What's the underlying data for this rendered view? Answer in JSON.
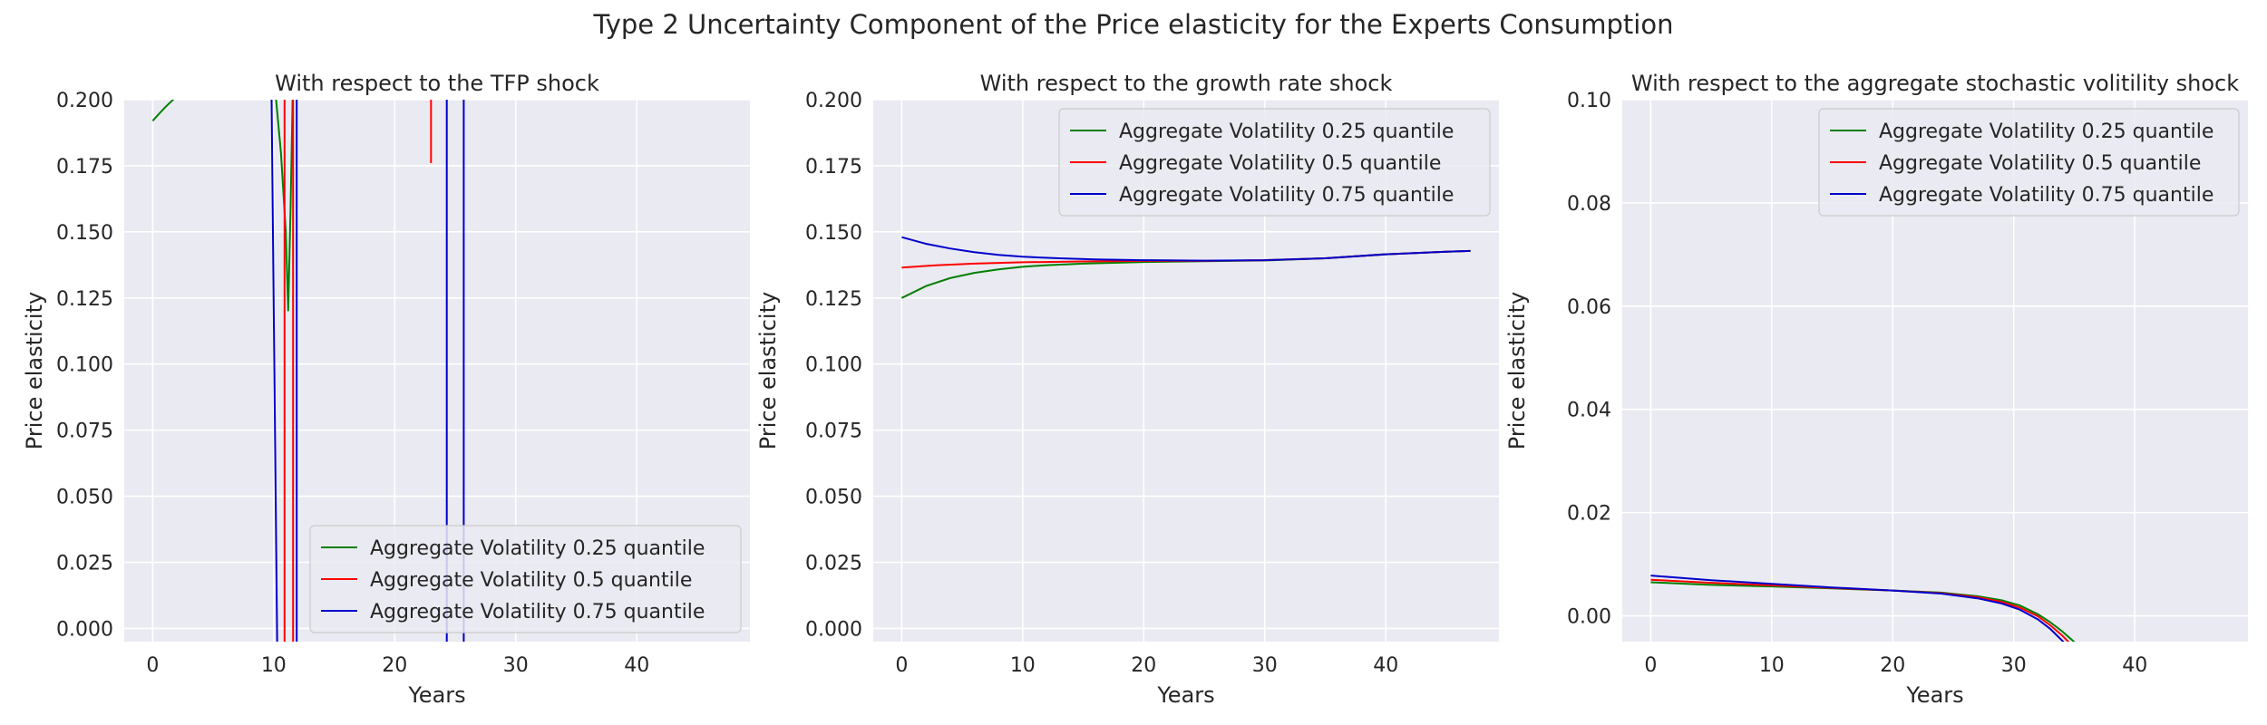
{
  "figure": {
    "title": "Type 2 Uncertainty Component of the Price elasticity for the Experts Consumption"
  },
  "chart_data": [
    {
      "type": "line",
      "title": "With respect to the TFP shock",
      "xlabel": "Years",
      "ylabel": "Price elasticity",
      "xlim": [
        -2.35,
        49.35
      ],
      "ylim": [
        -0.005,
        0.2
      ],
      "xticks": [
        0,
        10,
        20,
        30,
        40
      ],
      "yticks": [
        0.0,
        0.025,
        0.05,
        0.075,
        0.1,
        0.125,
        0.15,
        0.175,
        0.2
      ],
      "ytick_labels": [
        "0.000",
        "0.025",
        "0.050",
        "0.075",
        "0.100",
        "0.125",
        "0.150",
        "0.175",
        "0.200"
      ],
      "grid": true,
      "legend_position": "lower-right",
      "series": [
        {
          "name": "Aggregate Volatility 0.25 quantile",
          "color": "#008000",
          "segments": [
            [
              [
                0,
                0.192
              ],
              [
                0.5,
                0.1945
              ],
              [
                1,
                0.197
              ],
              [
                1.5,
                0.1992
              ],
              [
                1.8,
                0.2005
              ]
            ],
            [
              [
                10.0,
                0.21
              ],
              [
                10.6,
                0.18
              ],
              [
                11.0,
                0.15
              ],
              [
                11.2,
                0.12
              ],
              [
                11.4,
                0.16
              ],
              [
                11.6,
                0.21
              ]
            ]
          ]
        },
        {
          "name": "Aggregate Volatility 0.5 quantile",
          "color": "#ff0000",
          "segments": [
            [
              [
                10.9,
                0.21
              ],
              [
                10.9,
                -0.01
              ]
            ],
            [
              [
                11.6,
                -0.01
              ],
              [
                11.6,
                0.21
              ]
            ],
            [
              [
                23.0,
                0.176
              ],
              [
                23.0,
                0.21
              ]
            ]
          ]
        },
        {
          "name": "Aggregate Volatility 0.75 quantile",
          "color": "#0000cc",
          "segments": [
            [
              [
                9.8,
                0.21
              ],
              [
                10.3,
                -0.01
              ]
            ],
            [
              [
                11.9,
                -0.01
              ],
              [
                11.9,
                0.21
              ]
            ],
            [
              [
                24.3,
                -0.01
              ],
              [
                24.3,
                0.21
              ]
            ],
            [
              [
                25.7,
                -0.01
              ],
              [
                25.7,
                0.21
              ]
            ]
          ]
        }
      ]
    },
    {
      "type": "line",
      "title": "With respect to the growth rate shock",
      "xlabel": "Years",
      "ylabel": "Price elasticity",
      "xlim": [
        -2.35,
        49.35
      ],
      "ylim": [
        -0.005,
        0.2
      ],
      "xticks": [
        0,
        10,
        20,
        30,
        40
      ],
      "yticks": [
        0.0,
        0.025,
        0.05,
        0.075,
        0.1,
        0.125,
        0.15,
        0.175,
        0.2
      ],
      "ytick_labels": [
        "0.000",
        "0.025",
        "0.050",
        "0.075",
        "0.100",
        "0.125",
        "0.150",
        "0.175",
        "0.200"
      ],
      "grid": true,
      "legend_position": "upper-right",
      "series": [
        {
          "name": "Aggregate Volatility 0.25 quantile",
          "color": "#008000",
          "segments": [
            [
              [
                0,
                0.125
              ],
              [
                2,
                0.1295
              ],
              [
                4,
                0.1325
              ],
              [
                6,
                0.1345
              ],
              [
                8,
                0.1358
              ],
              [
                10,
                0.1368
              ],
              [
                12,
                0.1374
              ],
              [
                15,
                0.138
              ],
              [
                20,
                0.1386
              ],
              [
                25,
                0.1389
              ],
              [
                30,
                0.1392
              ],
              [
                35,
                0.14
              ],
              [
                40,
                0.1415
              ],
              [
                45,
                0.1425
              ],
              [
                47,
                0.1428
              ]
            ]
          ]
        },
        {
          "name": "Aggregate Volatility 0.5 quantile",
          "color": "#ff0000",
          "segments": [
            [
              [
                0,
                0.1365
              ],
              [
                3,
                0.1374
              ],
              [
                6,
                0.138
              ],
              [
                10,
                0.1385
              ],
              [
                15,
                0.1388
              ],
              [
                20,
                0.139
              ],
              [
                25,
                0.139
              ],
              [
                30,
                0.1393
              ],
              [
                35,
                0.14
              ],
              [
                40,
                0.1415
              ],
              [
                45,
                0.1425
              ],
              [
                47,
                0.1428
              ]
            ]
          ]
        },
        {
          "name": "Aggregate Volatility 0.75 quantile",
          "color": "#0000cc",
          "segments": [
            [
              [
                0,
                0.148
              ],
              [
                2,
                0.1455
              ],
              [
                4,
                0.1437
              ],
              [
                6,
                0.1423
              ],
              [
                8,
                0.1413
              ],
              [
                10,
                0.1406
              ],
              [
                13,
                0.14
              ],
              [
                16,
                0.1396
              ],
              [
                20,
                0.1393
              ],
              [
                25,
                0.1391
              ],
              [
                30,
                0.1393
              ],
              [
                35,
                0.14
              ],
              [
                40,
                0.1415
              ],
              [
                45,
                0.1425
              ],
              [
                47,
                0.1428
              ]
            ]
          ]
        }
      ]
    },
    {
      "type": "line",
      "title": "With respect to the aggregate stochastic volitility shock",
      "xlabel": "Years",
      "ylabel": "Price elasticity",
      "xlim": [
        -2.35,
        49.35
      ],
      "ylim": [
        -0.005,
        0.1
      ],
      "xticks": [
        0,
        10,
        20,
        30,
        40
      ],
      "yticks": [
        0.0,
        0.02,
        0.04,
        0.06,
        0.08,
        0.1
      ],
      "ytick_labels": [
        "0.00",
        "0.02",
        "0.04",
        "0.06",
        "0.08",
        "0.10"
      ],
      "grid": true,
      "legend_position": "upper-right",
      "series": [
        {
          "name": "Aggregate Volatility 0.25 quantile",
          "color": "#008000",
          "segments": [
            [
              [
                0,
                0.0065
              ],
              [
                5,
                0.006
              ],
              [
                10,
                0.0057
              ],
              [
                15,
                0.0053
              ],
              [
                20,
                0.0049
              ],
              [
                24,
                0.0045
              ],
              [
                27,
                0.0038
              ],
              [
                29,
                0.003
              ],
              [
                30.5,
                0.002
              ],
              [
                32,
                0.0003
              ],
              [
                33,
                -0.0012
              ],
              [
                34,
                -0.003
              ],
              [
                35.2,
                -0.0055
              ]
            ]
          ]
        },
        {
          "name": "Aggregate Volatility 0.5 quantile",
          "color": "#ff0000",
          "segments": [
            [
              [
                0,
                0.007
              ],
              [
                5,
                0.0064
              ],
              [
                10,
                0.0059
              ],
              [
                15,
                0.0054
              ],
              [
                20,
                0.0049
              ],
              [
                24,
                0.0044
              ],
              [
                27,
                0.0036
              ],
              [
                29,
                0.0027
              ],
              [
                30.5,
                0.0016
              ],
              [
                32,
                -0.0001
              ],
              [
                33,
                -0.0018
              ],
              [
                34,
                -0.0038
              ],
              [
                34.7,
                -0.0055
              ]
            ]
          ]
        },
        {
          "name": "Aggregate Volatility 0.75 quantile",
          "color": "#0000cc",
          "segments": [
            [
              [
                0,
                0.0078
              ],
              [
                5,
                0.0069
              ],
              [
                10,
                0.0062
              ],
              [
                15,
                0.0055
              ],
              [
                20,
                0.0049
              ],
              [
                24,
                0.0043
              ],
              [
                27,
                0.0034
              ],
              [
                29,
                0.0024
              ],
              [
                30.5,
                0.0012
              ],
              [
                32,
                -0.0007
              ],
              [
                33,
                -0.0025
              ],
              [
                34.3,
                -0.0055
              ]
            ]
          ]
        }
      ]
    }
  ]
}
